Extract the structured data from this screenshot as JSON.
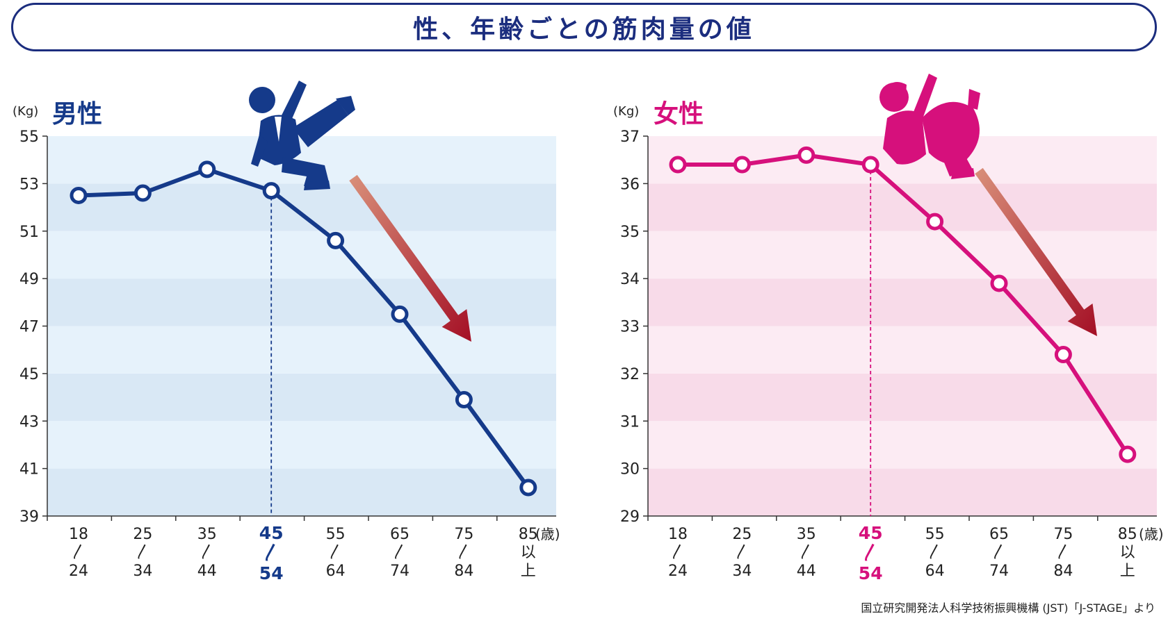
{
  "title": "性、年齢ごとの筋肉量の値",
  "source": "国立研究開発法人科学技術振興機構 (JST)「J-STAGE」より",
  "colors": {
    "men": "#153a8a",
    "women": "#d6107c",
    "men_band_light": "#e6f2fb",
    "men_band_dark": "#d9e8f5",
    "women_band_light": "#fcebf3",
    "women_band_dark": "#f8dbe9",
    "arrow_start": "#d9907a",
    "arrow_end": "#a40f25"
  },
  "icons": {
    "men": "falling-man-icon",
    "women": "falling-woman-icon",
    "arrow": "down-arrow-icon"
  },
  "chart_data": [
    {
      "type": "line",
      "title": "男性",
      "ylabel": "(Kg)",
      "xlabel": "(歳)",
      "ylim": [
        39,
        55
      ],
      "yticks": [
        39,
        41,
        43,
        45,
        47,
        49,
        51,
        53,
        55
      ],
      "categories": [
        [
          "18",
          "〳",
          "24"
        ],
        [
          "25",
          "〳",
          "34"
        ],
        [
          "35",
          "〳",
          "44"
        ],
        [
          "45",
          "〳",
          "54"
        ],
        [
          "55",
          "〳",
          "64"
        ],
        [
          "65",
          "〳",
          "74"
        ],
        [
          "75",
          "〳",
          "84"
        ],
        [
          "85",
          "以",
          "上"
        ]
      ],
      "highlight_index": 3,
      "values": [
        52.5,
        52.6,
        53.6,
        52.7,
        50.6,
        47.5,
        43.9,
        40.2
      ]
    },
    {
      "type": "line",
      "title": "女性",
      "ylabel": "(Kg)",
      "xlabel": "(歳)",
      "ylim": [
        29,
        37
      ],
      "yticks": [
        29,
        30,
        31,
        32,
        33,
        34,
        35,
        36,
        37
      ],
      "categories": [
        [
          "18",
          "〳",
          "24"
        ],
        [
          "25",
          "〳",
          "34"
        ],
        [
          "35",
          "〳",
          "44"
        ],
        [
          "45",
          "〳",
          "54"
        ],
        [
          "55",
          "〳",
          "64"
        ],
        [
          "65",
          "〳",
          "74"
        ],
        [
          "75",
          "〳",
          "84"
        ],
        [
          "85",
          "以",
          "上"
        ]
      ],
      "highlight_index": 3,
      "values": [
        36.4,
        36.4,
        36.6,
        36.4,
        35.2,
        33.9,
        32.4,
        30.3
      ]
    }
  ]
}
